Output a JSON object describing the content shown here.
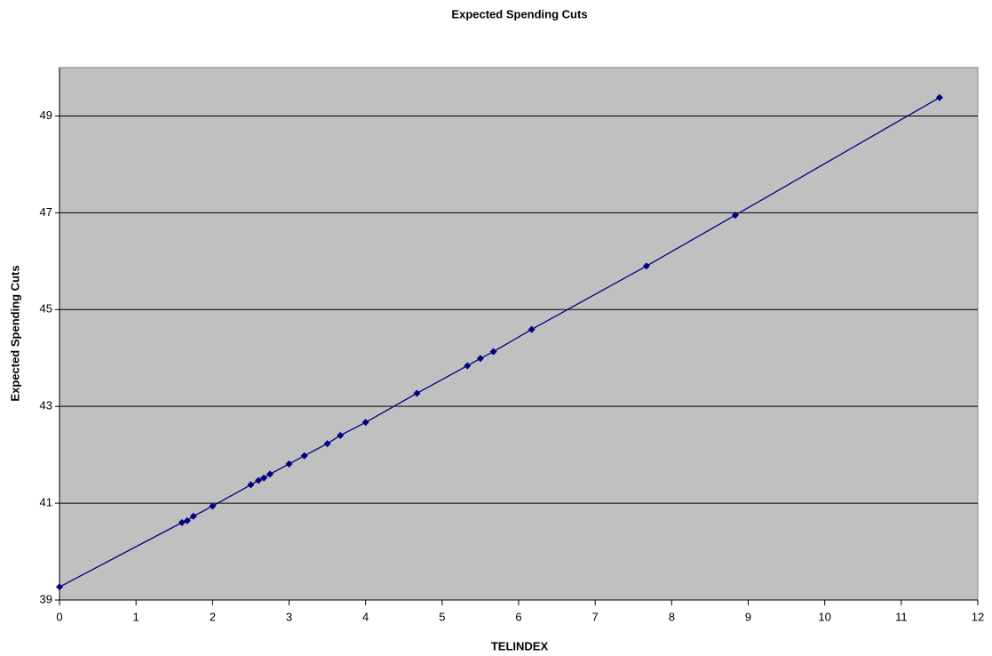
{
  "chart_data": {
    "type": "line",
    "title": "Expected Spending Cuts",
    "x_label": "TELINDEX",
    "y_label": "Expected Spending Cuts",
    "x": [
      0,
      1.6,
      1.67,
      1.75,
      2.0,
      2.5,
      2.6,
      2.67,
      2.75,
      3.0,
      3.2,
      3.5,
      3.67,
      4.0,
      4.67,
      5.33,
      5.5,
      5.67,
      6.17,
      7.67,
      8.83,
      11.5
    ],
    "series": [
      {
        "name": "Expected Spending Cuts",
        "color": "#000080",
        "values": [
          39.27,
          40.6,
          40.64,
          40.73,
          40.94,
          41.38,
          41.47,
          41.52,
          41.6,
          41.81,
          41.98,
          42.23,
          42.4,
          42.67,
          43.27,
          43.84,
          43.99,
          44.13,
          44.59,
          45.9,
          46.95,
          49.38
        ]
      }
    ],
    "xlim": [
      0,
      12
    ],
    "xticks": [
      0,
      1,
      2,
      3,
      4,
      5,
      6,
      7,
      8,
      9,
      10,
      11,
      12
    ],
    "ylim": [
      39,
      50
    ],
    "yticks": [
      39,
      41,
      43,
      45,
      47,
      49
    ],
    "grid": true,
    "plot_background": "#c0c0c0"
  }
}
